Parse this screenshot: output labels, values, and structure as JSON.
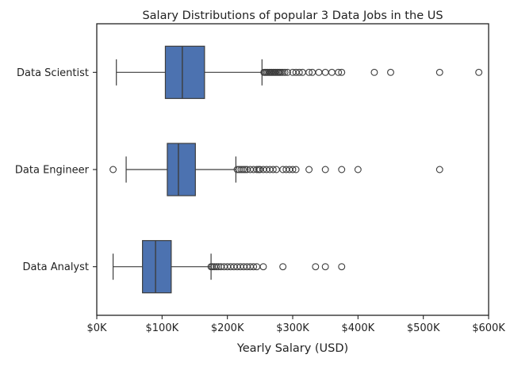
{
  "chart_data": {
    "type": "box",
    "orientation": "horizontal",
    "title": "Salary Distributions of popular 3 Data Jobs in the US",
    "xlabel": "Yearly Salary (USD)",
    "ylabel": "",
    "xlim": [
      0,
      600000
    ],
    "xticks": [
      0,
      100000,
      200000,
      300000,
      400000,
      500000,
      600000
    ],
    "xtick_labels": [
      "$0K",
      "$100K",
      "$200K",
      "$300K",
      "$400K",
      "$500K",
      "$600K"
    ],
    "grid": false,
    "legend": "none",
    "box_color": "#4c72b0",
    "categories": [
      "Data Scientist",
      "Data Engineer",
      "Data Analyst"
    ],
    "boxes": [
      {
        "label": "Data Scientist",
        "whisker_low": 30000,
        "q1": 105000,
        "median": 131000,
        "q3": 165000,
        "whisker_high": 253000,
        "outliers": [
          256000,
          258000,
          260000,
          262000,
          264000,
          266000,
          268000,
          270000,
          272000,
          274000,
          276000,
          278000,
          280000,
          282000,
          285000,
          288000,
          292000,
          300000,
          305000,
          310000,
          315000,
          325000,
          330000,
          340000,
          350000,
          360000,
          370000,
          375000,
          425000,
          450000,
          525000,
          585000
        ]
      },
      {
        "label": "Data Engineer",
        "whisker_low": 45000,
        "q1": 108000,
        "median": 125000,
        "q3": 151000,
        "whisker_high": 213000,
        "outliers": [
          25000,
          215000,
          218000,
          221000,
          224000,
          227000,
          230000,
          235000,
          240000,
          245000,
          248000,
          250000,
          255000,
          260000,
          265000,
          270000,
          275000,
          285000,
          290000,
          295000,
          300000,
          305000,
          325000,
          350000,
          375000,
          400000,
          525000
        ]
      },
      {
        "label": "Data Analyst",
        "whisker_low": 25000,
        "q1": 70000,
        "median": 90000,
        "q3": 114000,
        "whisker_high": 175000,
        "outliers": [
          175000,
          177000,
          180000,
          183000,
          186000,
          190000,
          195000,
          200000,
          205000,
          210000,
          215000,
          220000,
          225000,
          230000,
          235000,
          240000,
          245000,
          255000,
          285000,
          335000,
          350000,
          375000
        ]
      }
    ]
  }
}
